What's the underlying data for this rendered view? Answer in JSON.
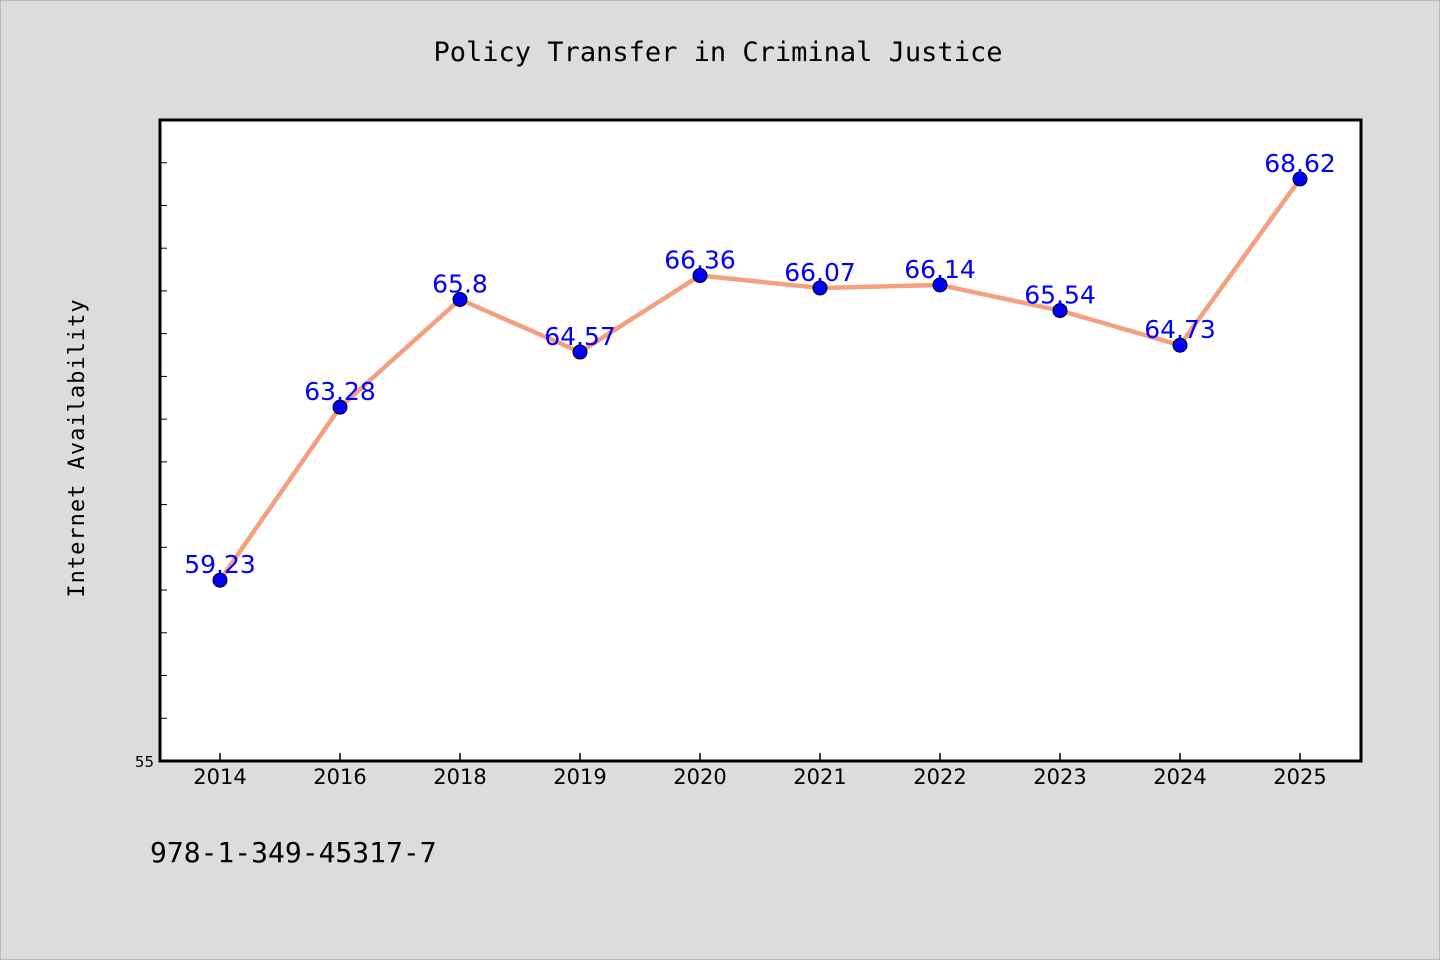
{
  "isbn": "978-1-349-45317-7",
  "colors": {
    "background": "#dcdcdc",
    "plot_background": "#ffffff",
    "line": "#f4a07f",
    "marker": "#0000ff",
    "data_label": "#0000ff"
  },
  "chart_data": {
    "type": "line",
    "title": "Policy Transfer in Criminal Justice",
    "xlabel": "",
    "ylabel": "Internet Availability",
    "categories": [
      "2014",
      "2016",
      "2018",
      "2019",
      "2020",
      "2021",
      "2022",
      "2023",
      "2024",
      "2025"
    ],
    "series": [
      {
        "values": [
          59.23,
          63.28,
          65.8,
          64.57,
          66.36,
          66.07,
          66.14,
          65.54,
          64.73,
          68.62
        ]
      }
    ],
    "data_labels": [
      "59.23",
      "63.28",
      "65.8",
      "64.57",
      "66.36",
      "66.07",
      "66.14",
      "65.54",
      "64.73",
      "68.62"
    ],
    "ylim": [
      55,
      70
    ],
    "y_tick_labels": [
      "55"
    ],
    "y_minor_tick_step": 1,
    "grid": false,
    "legend": "none"
  }
}
